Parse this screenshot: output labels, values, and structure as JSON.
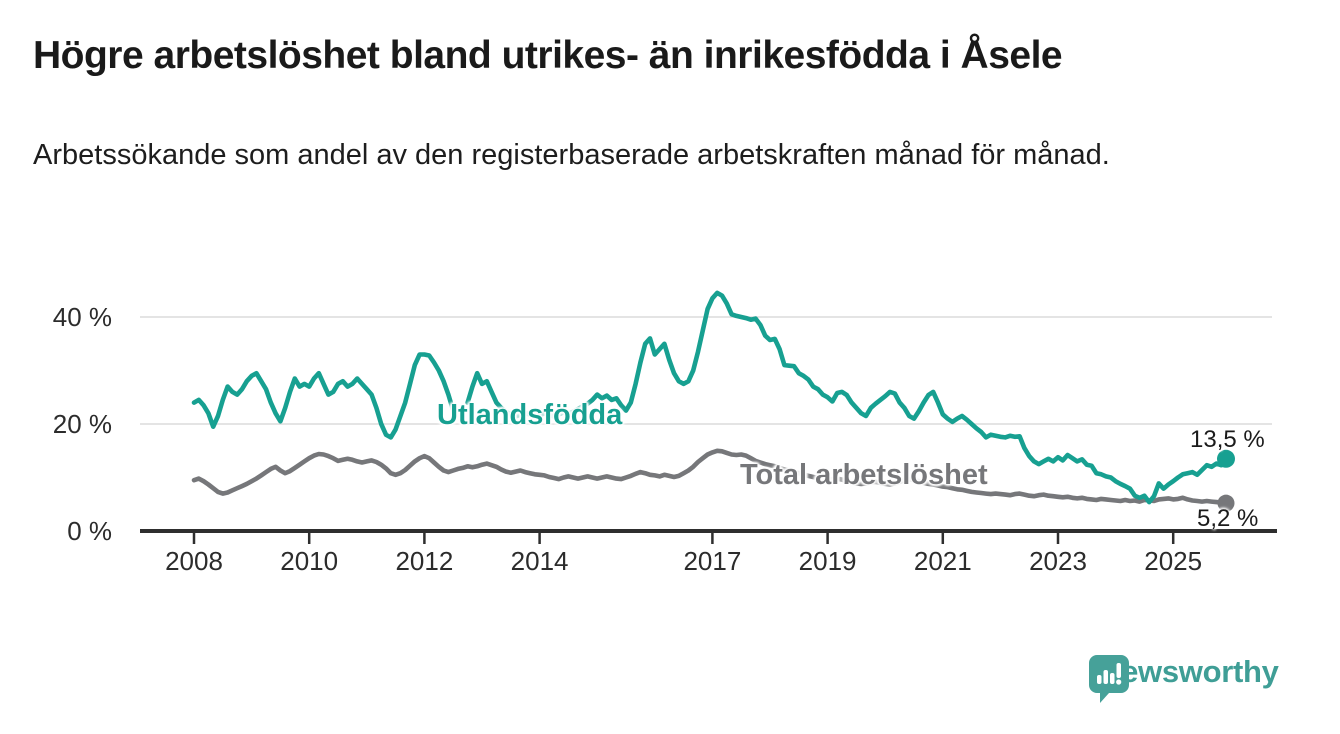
{
  "header": {
    "title": "Högre arbetslöshet bland utrikes- än inrikesfödda i Åsele",
    "subtitle": "Arbetssökande som andel av den registerbaserade arbetskraften månad för månad."
  },
  "chart_data": {
    "type": "line",
    "title": "Arbetssökande som andel av den registerbaserade arbetskraften",
    "unit": "%",
    "frequency": "monthly",
    "x_start_year": 2008,
    "x_end_year": 2025,
    "x_tick_years": [
      2008,
      2010,
      2012,
      2014,
      2017,
      2019,
      2021,
      2023,
      2025
    ],
    "ylim": [
      0,
      45
    ],
    "yticks": [
      {
        "value": 0,
        "label": "0 %"
      },
      {
        "value": 20,
        "label": "20 %"
      },
      {
        "value": 40,
        "label": "40 %"
      }
    ],
    "grid": true,
    "legend_position": "inline-labels",
    "series": [
      {
        "name": "Utlandsfödda",
        "color": "#17a091",
        "end_value_label": "13,5 %",
        "end_value": 13.5,
        "values": [
          24.0,
          24.5,
          23.5,
          22.0,
          19.5,
          21.5,
          24.5,
          27.0,
          26.0,
          25.5,
          26.5,
          28.0,
          29.0,
          29.5,
          28.0,
          26.5,
          24.0,
          22.0,
          20.5,
          23.0,
          26.0,
          28.5,
          27.0,
          27.5,
          27.0,
          28.5,
          29.5,
          27.5,
          25.5,
          26.0,
          27.5,
          28.0,
          27.0,
          27.5,
          28.5,
          27.5,
          26.5,
          25.5,
          23.0,
          20.0,
          18.0,
          17.5,
          19.0,
          21.5,
          24.0,
          27.5,
          31.0,
          33.0,
          33.0,
          32.8,
          31.5,
          30.0,
          28.0,
          25.5,
          22.5,
          null,
          null,
          24.0,
          27.0,
          29.5,
          27.5,
          28.0,
          26.0,
          24.0,
          23.0,
          22.3,
          21.8,
          21.4,
          21.7,
          22.0,
          21.8,
          21.5,
          21.6,
          22.0,
          21.7,
          21.4,
          21.8,
          22.2,
          21.9,
          22.3,
          22.8,
          23.3,
          23.8,
          24.5,
          25.5,
          24.8,
          25.3,
          24.5,
          24.8,
          23.5,
          22.5,
          24.0,
          27.5,
          31.5,
          35.0,
          36.0,
          33.0,
          34.0,
          35.0,
          32.0,
          29.5,
          28.0,
          27.5,
          28.0,
          30.0,
          33.5,
          37.5,
          41.5,
          43.5,
          44.5,
          44.0,
          42.5,
          40.5,
          40.2,
          40.0,
          39.8,
          39.5,
          39.7,
          38.5,
          36.5,
          35.7,
          35.9,
          34.0,
          31.0,
          30.9,
          30.8,
          29.5,
          29.0,
          28.3,
          27.0,
          26.5,
          25.5,
          25.0,
          24.2,
          25.8,
          26.0,
          25.4,
          24.0,
          23.0,
          22.0,
          21.5,
          23.0,
          23.8,
          24.5,
          25.2,
          26.0,
          25.7,
          24.0,
          23.0,
          21.5,
          21.0,
          22.4,
          24.0,
          25.4,
          26.0,
          24.0,
          21.8,
          21.0,
          20.4,
          21.0,
          21.5,
          20.8,
          20.0,
          19.2,
          18.5,
          17.5,
          18.0,
          17.8,
          17.6,
          17.5,
          17.8,
          17.6,
          17.7,
          15.5,
          14.0,
          13.0,
          12.5,
          13.0,
          13.5,
          13.0,
          13.8,
          13.2,
          14.2,
          13.6,
          13.0,
          13.4,
          12.4,
          12.2,
          10.8,
          10.6,
          10.2,
          10.0,
          9.3,
          8.8,
          8.4,
          7.9,
          6.6,
          6.2,
          6.6,
          5.4,
          6.5,
          8.9,
          7.9,
          8.7,
          9.3,
          10.0,
          10.6,
          10.8,
          11.0,
          10.5,
          11.4,
          12.3,
          12.0,
          12.6,
          12.3,
          13.5
        ]
      },
      {
        "name": "Total arbetslöshet",
        "color": "#76777a",
        "end_value_label": "5,2 %",
        "end_value": 5.2,
        "values": [
          9.5,
          9.8,
          9.3,
          8.7,
          8.0,
          7.3,
          7.0,
          7.2,
          7.6,
          8.0,
          8.4,
          8.8,
          9.3,
          9.8,
          10.4,
          11.0,
          11.6,
          12.0,
          11.3,
          10.8,
          11.2,
          11.8,
          12.4,
          13.0,
          13.6,
          14.1,
          14.4,
          14.3,
          14.0,
          13.6,
          13.1,
          13.3,
          13.5,
          13.3,
          13.0,
          12.8,
          13.0,
          13.2,
          12.9,
          12.4,
          11.7,
          10.8,
          10.5,
          10.8,
          11.4,
          12.2,
          13.0,
          13.6,
          14.0,
          13.6,
          12.8,
          12.0,
          11.3,
          11.0,
          11.3,
          11.6,
          11.8,
          12.1,
          11.9,
          12.1,
          12.4,
          12.6,
          12.3,
          12.0,
          11.5,
          11.1,
          10.9,
          11.1,
          11.3,
          11.0,
          10.8,
          10.6,
          10.5,
          10.4,
          10.1,
          9.9,
          9.7,
          10.0,
          10.2,
          10.0,
          9.8,
          10.0,
          10.2,
          10.0,
          9.8,
          10.0,
          10.2,
          10.0,
          9.8,
          9.7,
          10.0,
          10.3,
          10.7,
          11.0,
          10.8,
          10.5,
          10.4,
          10.2,
          10.5,
          10.3,
          10.1,
          10.3,
          10.8,
          11.3,
          12.0,
          12.9,
          13.6,
          14.3,
          14.7,
          15.0,
          14.9,
          14.6,
          14.3,
          14.2,
          14.3,
          14.1,
          13.6,
          13.1,
          12.8,
          12.5,
          12.3,
          12.1,
          11.8,
          11.5,
          11.3,
          11.0,
          10.8,
          10.6,
          10.3,
          10.1,
          9.9,
          9.7,
          9.5,
          9.7,
          9.8,
          9.6,
          9.3,
          9.1,
          8.9,
          8.8,
          8.9,
          9.1,
          9.2,
          9.0,
          8.8,
          8.7,
          8.9,
          9.2,
          9.5,
          9.7,
          9.5,
          9.3,
          9.0,
          8.8,
          8.7,
          8.5,
          8.3,
          8.2,
          8.0,
          7.8,
          7.7,
          7.5,
          7.3,
          7.2,
          7.1,
          7.0,
          6.9,
          7.0,
          6.9,
          6.8,
          6.7,
          6.9,
          7.0,
          6.8,
          6.6,
          6.5,
          6.7,
          6.8,
          6.6,
          6.5,
          6.4,
          6.3,
          6.4,
          6.2,
          6.1,
          6.2,
          6.0,
          5.9,
          5.8,
          6.0,
          5.9,
          5.8,
          5.7,
          5.6,
          5.8,
          5.6,
          5.7,
          5.5,
          5.8,
          5.7,
          5.6,
          5.9,
          6.0,
          6.1,
          5.9,
          6.0,
          6.2,
          5.9,
          5.7,
          5.6,
          5.5,
          5.6,
          5.5,
          5.4,
          5.3,
          5.2
        ]
      }
    ],
    "annotations": {
      "series_label_utlandsfodda": "Utlandsfödda",
      "series_label_total": "Total arbetslöshet",
      "end_label_utlandsfodda": "13,5 %",
      "end_label_total": "5,2 %"
    },
    "colors": {
      "axis": "#2e2e2e",
      "grid": "#dcdcdc",
      "teal": "#17a091",
      "gray": "#76777a"
    }
  },
  "footer": {
    "logo_text": "Newsworthy",
    "logo_color": "#3f9e96",
    "logo_bubble_color": "#46a199"
  }
}
